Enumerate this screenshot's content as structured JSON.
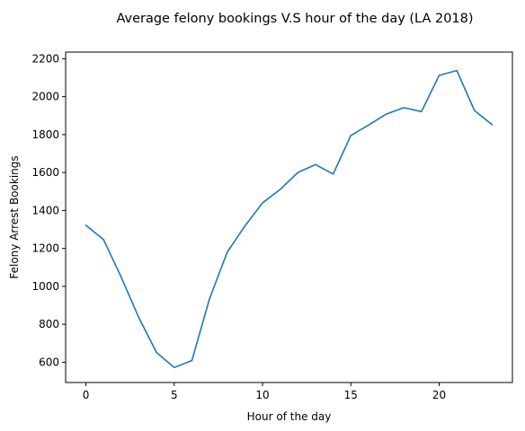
{
  "chart_data": {
    "type": "line",
    "title": "Average felony bookings V.S hour of the day (LA 2018)",
    "xlabel": "Hour of the day",
    "ylabel": "Felony Arrest Bookings",
    "xlim": [
      -1.15,
      24.15
    ],
    "ylim": [
      493,
      2235
    ],
    "xticks": [
      0,
      5,
      10,
      15,
      20
    ],
    "yticks": [
      600,
      800,
      1000,
      1200,
      1400,
      1600,
      1800,
      2000,
      2200
    ],
    "grid": false,
    "legend": "none",
    "color": "#1f77b4",
    "x": [
      0,
      1,
      2,
      3,
      4,
      5,
      6,
      7,
      8,
      9,
      10,
      11,
      12,
      13,
      14,
      15,
      16,
      17,
      18,
      19,
      20,
      21,
      22,
      23
    ],
    "values": [
      1322,
      1246,
      1048,
      834,
      651,
      572,
      609,
      935,
      1180,
      1318,
      1440,
      1511,
      1600,
      1642,
      1592,
      1795,
      1850,
      1908,
      1942,
      1921,
      2112,
      2138,
      1927,
      1852
    ]
  }
}
